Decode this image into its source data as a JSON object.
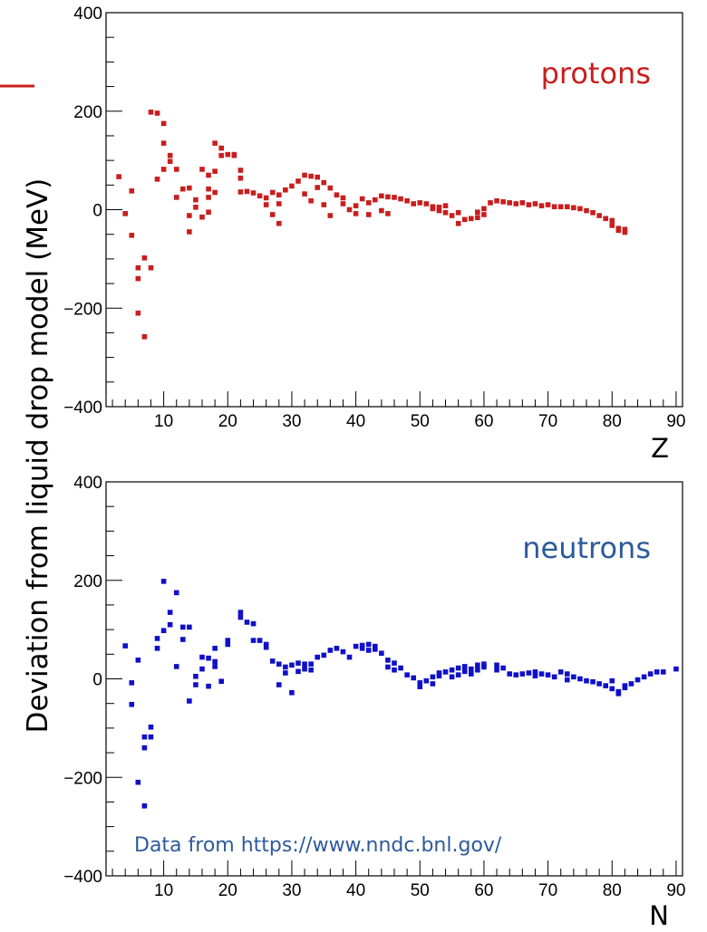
{
  "y_axis_label": "Deviation from liquid drop model (MeV)",
  "chart_data": [
    {
      "type": "scatter",
      "xlabel": "Z",
      "xlim": [
        1,
        91
      ],
      "ylim": [
        -400,
        400
      ],
      "xticks": [
        10,
        20,
        30,
        40,
        50,
        60,
        70,
        80,
        90
      ],
      "yticks": [
        -400,
        -200,
        0,
        200,
        400
      ],
      "grid": false,
      "series": [
        {
          "name": "protons",
          "color": "#c81e1e",
          "points": [
            [
              3,
              67
            ],
            [
              4,
              -8
            ],
            [
              5,
              -52
            ],
            [
              5,
              38
            ],
            [
              6,
              -140
            ],
            [
              6,
              -118
            ],
            [
              6,
              -210
            ],
            [
              7,
              -258
            ],
            [
              7,
              -98
            ],
            [
              8,
              -118
            ],
            [
              8,
              198
            ],
            [
              9,
              196
            ],
            [
              9,
              62
            ],
            [
              10,
              175
            ],
            [
              10,
              135
            ],
            [
              10,
              82
            ],
            [
              11,
              98
            ],
            [
              11,
              110
            ],
            [
              12,
              82
            ],
            [
              12,
              25
            ],
            [
              13,
              42
            ],
            [
              14,
              44
            ],
            [
              14,
              -45
            ],
            [
              14,
              -12
            ],
            [
              15,
              5
            ],
            [
              15,
              20
            ],
            [
              16,
              82
            ],
            [
              16,
              -15
            ],
            [
              17,
              70
            ],
            [
              17,
              42
            ],
            [
              17,
              -5
            ],
            [
              17,
              25
            ],
            [
              18,
              135
            ],
            [
              18,
              78
            ],
            [
              18,
              35
            ],
            [
              19,
              125
            ],
            [
              19,
              110
            ],
            [
              20,
              112
            ],
            [
              21,
              112
            ],
            [
              21,
              110
            ],
            [
              22,
              80
            ],
            [
              22,
              64
            ],
            [
              22,
              36
            ],
            [
              23,
              37
            ],
            [
              24,
              34
            ],
            [
              25,
              28
            ],
            [
              26,
              24
            ],
            [
              26,
              10
            ],
            [
              27,
              35
            ],
            [
              27,
              -10
            ],
            [
              28,
              -28
            ],
            [
              28,
              12
            ],
            [
              28,
              30
            ],
            [
              29,
              40
            ],
            [
              30,
              48
            ],
            [
              31,
              58
            ],
            [
              32,
              70
            ],
            [
              32,
              32
            ],
            [
              33,
              68
            ],
            [
              33,
              18
            ],
            [
              34,
              66
            ],
            [
              34,
              45
            ],
            [
              35,
              55
            ],
            [
              35,
              10
            ],
            [
              36,
              44
            ],
            [
              36,
              -12
            ],
            [
              37,
              30
            ],
            [
              38,
              24
            ],
            [
              38,
              12
            ],
            [
              39,
              0
            ],
            [
              40,
              8
            ],
            [
              40,
              -8
            ],
            [
              41,
              22
            ],
            [
              42,
              14
            ],
            [
              42,
              -10
            ],
            [
              43,
              20
            ],
            [
              44,
              28
            ],
            [
              44,
              -2
            ],
            [
              45,
              26
            ],
            [
              45,
              -8
            ],
            [
              46,
              25
            ],
            [
              47,
              22
            ],
            [
              48,
              18
            ],
            [
              49,
              12
            ],
            [
              50,
              14
            ],
            [
              51,
              12
            ],
            [
              52,
              6
            ],
            [
              52,
              2
            ],
            [
              53,
              5
            ],
            [
              53,
              -2
            ],
            [
              54,
              8
            ],
            [
              54,
              -6
            ],
            [
              55,
              -12
            ],
            [
              56,
              -28
            ],
            [
              56,
              -6
            ],
            [
              57,
              -20
            ],
            [
              58,
              -18
            ],
            [
              59,
              -16
            ],
            [
              59,
              -5
            ],
            [
              60,
              -10
            ],
            [
              60,
              2
            ],
            [
              61,
              14
            ],
            [
              62,
              18
            ],
            [
              63,
              16
            ],
            [
              64,
              14
            ],
            [
              65,
              12
            ],
            [
              66,
              14
            ],
            [
              67,
              10
            ],
            [
              68,
              12
            ],
            [
              69,
              8
            ],
            [
              70,
              10
            ],
            [
              71,
              6
            ],
            [
              72,
              6
            ],
            [
              73,
              6
            ],
            [
              74,
              4
            ],
            [
              75,
              2
            ],
            [
              76,
              -2
            ],
            [
              77,
              -6
            ],
            [
              78,
              -12
            ],
            [
              79,
              -18
            ],
            [
              80,
              -22
            ],
            [
              80,
              -32
            ],
            [
              81,
              -38
            ],
            [
              81,
              -42
            ],
            [
              82,
              -46
            ],
            [
              82,
              -40
            ]
          ]
        }
      ]
    },
    {
      "type": "scatter",
      "xlabel": "N",
      "xlim": [
        1,
        91
      ],
      "ylim": [
        -400,
        400
      ],
      "xticks": [
        10,
        20,
        30,
        40,
        50,
        60,
        70,
        80,
        90
      ],
      "yticks": [
        -400,
        -200,
        0,
        200,
        400
      ],
      "grid": false,
      "series": [
        {
          "name": "neutrons",
          "color": "#1010c8",
          "points": [
            [
              4,
              67
            ],
            [
              5,
              -8
            ],
            [
              5,
              -52
            ],
            [
              6,
              38
            ],
            [
              6,
              -210
            ],
            [
              7,
              -258
            ],
            [
              7,
              -140
            ],
            [
              7,
              -118
            ],
            [
              8,
              -98
            ],
            [
              8,
              -118
            ],
            [
              9,
              62
            ],
            [
              9,
              82
            ],
            [
              10,
              198
            ],
            [
              10,
              98
            ],
            [
              11,
              135
            ],
            [
              11,
              110
            ],
            [
              12,
              175
            ],
            [
              12,
              25
            ],
            [
              13,
              105
            ],
            [
              13,
              80
            ],
            [
              14,
              105
            ],
            [
              14,
              -45
            ],
            [
              15,
              -12
            ],
            [
              15,
              5
            ],
            [
              16,
              44
            ],
            [
              16,
              20
            ],
            [
              17,
              -15
            ],
            [
              17,
              42
            ],
            [
              18,
              62
            ],
            [
              18,
              25
            ],
            [
              18,
              35
            ],
            [
              19,
              -5
            ],
            [
              20,
              78
            ],
            [
              20,
              70
            ],
            [
              22,
              135
            ],
            [
              22,
              125
            ],
            [
              23,
              115
            ],
            [
              24,
              112
            ],
            [
              24,
              78
            ],
            [
              25,
              78
            ],
            [
              26,
              70
            ],
            [
              26,
              64
            ],
            [
              27,
              36
            ],
            [
              28,
              30
            ],
            [
              28,
              -12
            ],
            [
              29,
              24
            ],
            [
              29,
              12
            ],
            [
              30,
              28
            ],
            [
              30,
              -28
            ],
            [
              31,
              32
            ],
            [
              31,
              15
            ],
            [
              32,
              30
            ],
            [
              32,
              20
            ],
            [
              33,
              18
            ],
            [
              33,
              30
            ],
            [
              34,
              44
            ],
            [
              35,
              48
            ],
            [
              36,
              58
            ],
            [
              37,
              62
            ],
            [
              38,
              55
            ],
            [
              39,
              44
            ],
            [
              40,
              66
            ],
            [
              41,
              68
            ],
            [
              41,
              62
            ],
            [
              42,
              70
            ],
            [
              42,
              58
            ],
            [
              43,
              66
            ],
            [
              43,
              60
            ],
            [
              44,
              52
            ],
            [
              45,
              38
            ],
            [
              45,
              24
            ],
            [
              46,
              32
            ],
            [
              46,
              18
            ],
            [
              47,
              22
            ],
            [
              48,
              8
            ],
            [
              49,
              2
            ],
            [
              50,
              -8
            ],
            [
              50,
              -16
            ],
            [
              51,
              -4
            ],
            [
              52,
              -10
            ],
            [
              52,
              4
            ],
            [
              53,
              6
            ],
            [
              53,
              12
            ],
            [
              54,
              14
            ],
            [
              55,
              4
            ],
            [
              55,
              18
            ],
            [
              56,
              22
            ],
            [
              56,
              8
            ],
            [
              57,
              25
            ],
            [
              57,
              15
            ],
            [
              58,
              20
            ],
            [
              58,
              10
            ],
            [
              59,
              28
            ],
            [
              59,
              18
            ],
            [
              60,
              30
            ],
            [
              60,
              24
            ],
            [
              62,
              28
            ],
            [
              62,
              18
            ],
            [
              63,
              22
            ],
            [
              64,
              10
            ],
            [
              65,
              8
            ],
            [
              66,
              10
            ],
            [
              67,
              12
            ],
            [
              68,
              6
            ],
            [
              68,
              14
            ],
            [
              69,
              10
            ],
            [
              70,
              8
            ],
            [
              71,
              4
            ],
            [
              72,
              14
            ],
            [
              73,
              10
            ],
            [
              73,
              -2
            ],
            [
              74,
              4
            ],
            [
              75,
              0
            ],
            [
              76,
              -4
            ],
            [
              77,
              -6
            ],
            [
              78,
              -10
            ],
            [
              79,
              -14
            ],
            [
              80,
              -20
            ],
            [
              80,
              -4
            ],
            [
              81,
              -26
            ],
            [
              81,
              -30
            ],
            [
              82,
              -18
            ],
            [
              82,
              -14
            ],
            [
              83,
              -10
            ],
            [
              84,
              -2
            ],
            [
              85,
              4
            ],
            [
              86,
              10
            ],
            [
              87,
              14
            ],
            [
              88,
              14
            ],
            [
              90,
              20
            ]
          ]
        }
      ],
      "annotation": "Data from https://www.nndc.bnl.gov/"
    }
  ]
}
